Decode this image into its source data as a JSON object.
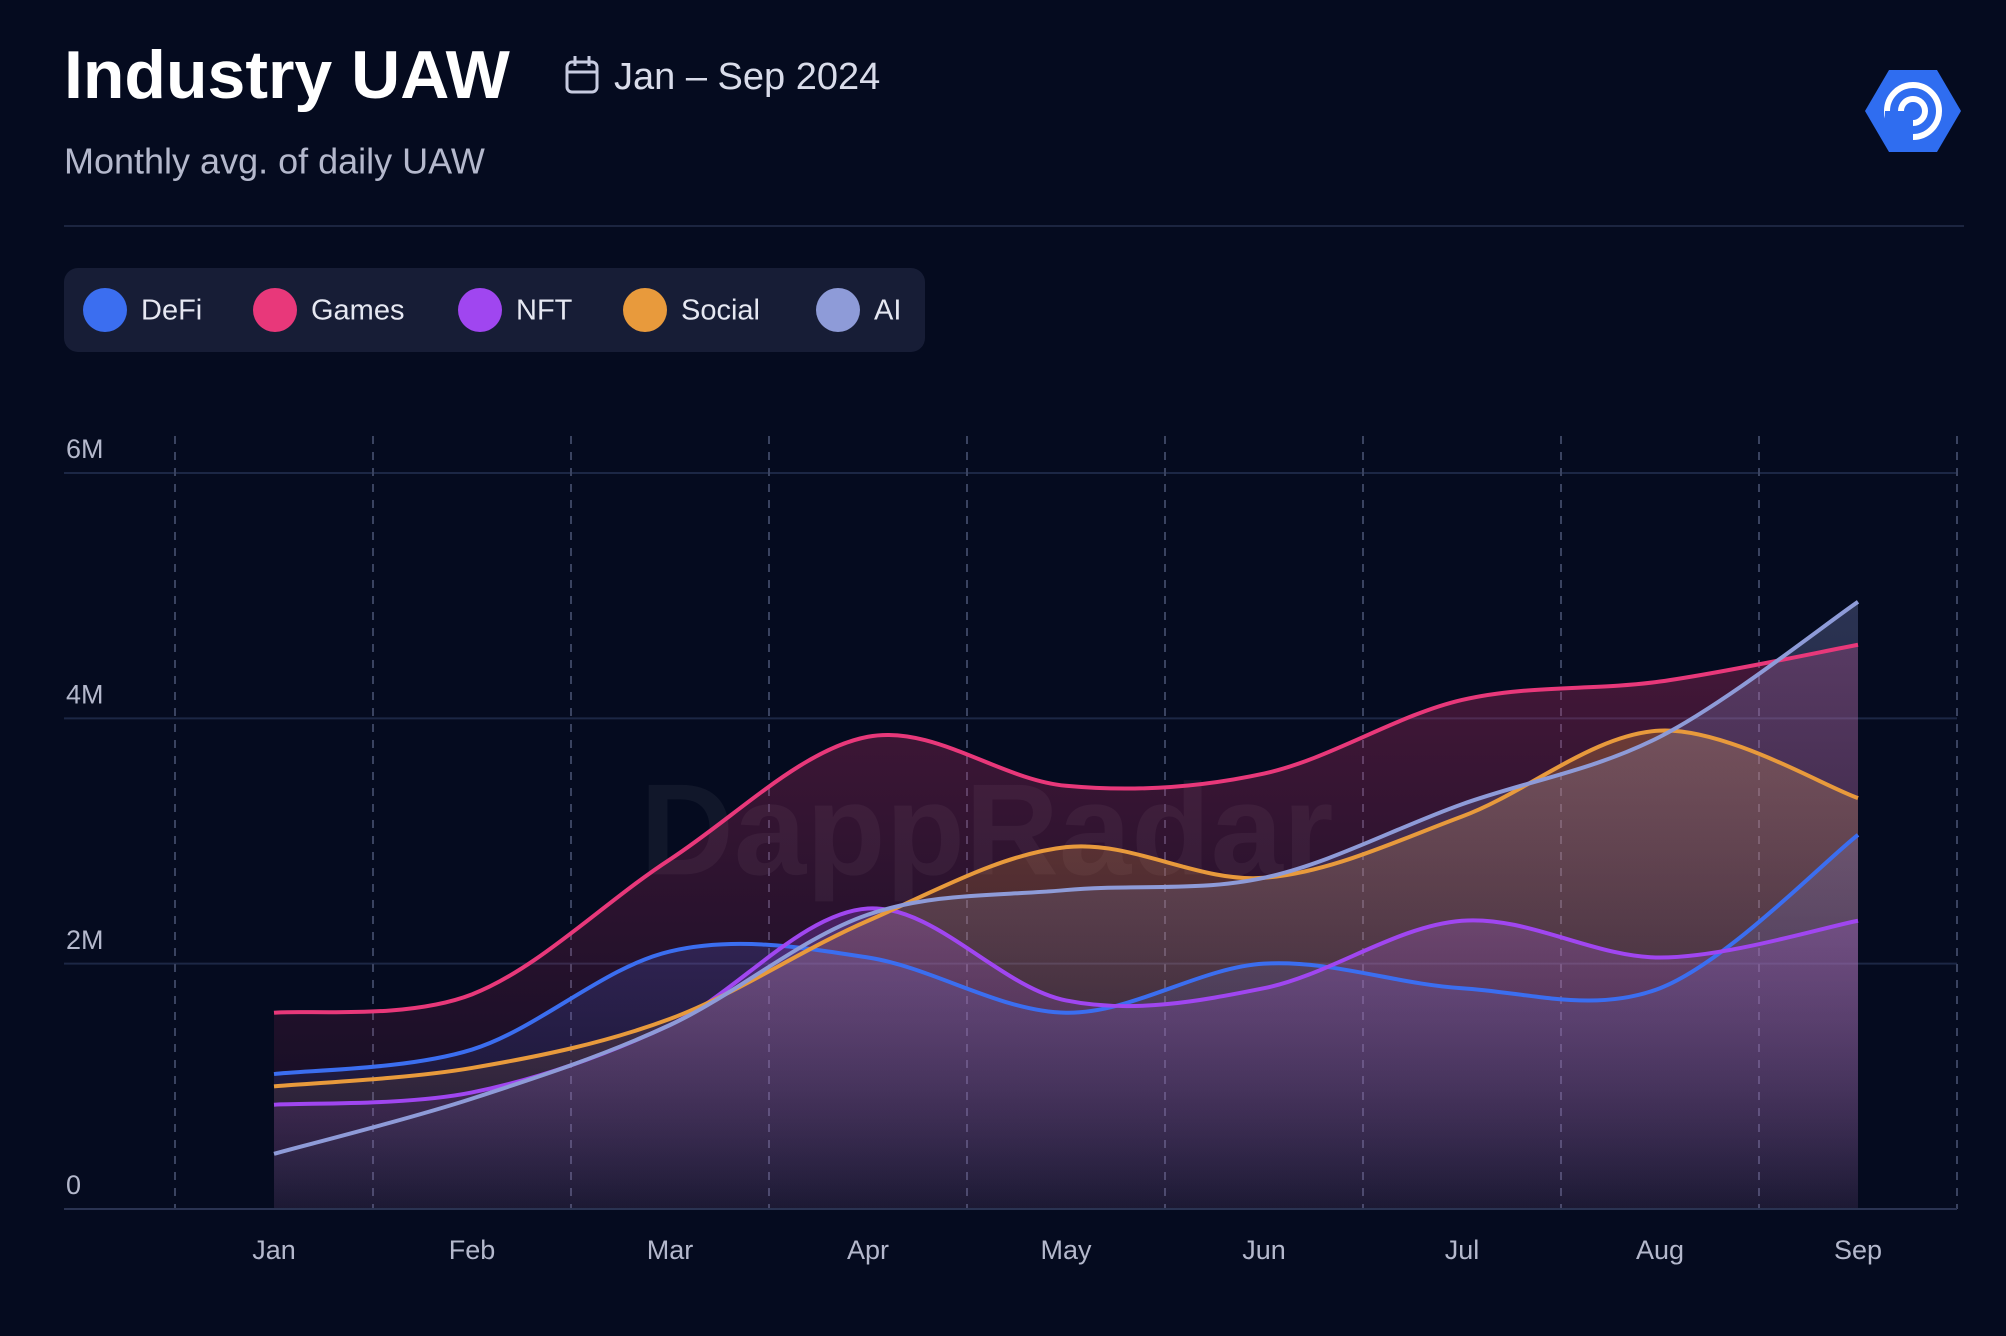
{
  "chart_data": {
    "type": "line",
    "title": "Industry UAW",
    "date_range": "Jan – Sep 2024",
    "subtitle": "Monthly avg. of daily UAW",
    "watermark": "DappRadar",
    "categories": [
      "Jan",
      "Feb",
      "Mar",
      "Apr",
      "May",
      "Jun",
      "Jul",
      "Aug",
      "Sep"
    ],
    "series": [
      {
        "name": "DeFi",
        "color": "#3b6ef0",
        "values": [
          1100000,
          1300000,
          2100000,
          2050000,
          1600000,
          2000000,
          1800000,
          1800000,
          3050000
        ]
      },
      {
        "name": "Games",
        "color": "#e8387a",
        "values": [
          1600000,
          1750000,
          2850000,
          3850000,
          3450000,
          3550000,
          4150000,
          4300000,
          4600000
        ]
      },
      {
        "name": "NFT",
        "color": "#a046f0",
        "values": [
          850000,
          950000,
          1500000,
          2450000,
          1700000,
          1800000,
          2350000,
          2050000,
          2350000
        ]
      },
      {
        "name": "Social",
        "color": "#e89a3c",
        "values": [
          1000000,
          1150000,
          1550000,
          2350000,
          2950000,
          2700000,
          3200000,
          3900000,
          3350000
        ]
      },
      {
        "name": "AI",
        "color": "#8e9bd8",
        "values": [
          450000,
          900000,
          1500000,
          2400000,
          2600000,
          2700000,
          3300000,
          3850000,
          4950000
        ]
      }
    ],
    "ylim": [
      0,
      6000000
    ],
    "yticks": [
      0,
      {
        "value": 2000000,
        "label": "2M"
      },
      {
        "value": 4000000,
        "label": "4M"
      },
      {
        "value": 6000000,
        "label": "6M"
      }
    ],
    "grid": true,
    "legend": "top-left"
  }
}
